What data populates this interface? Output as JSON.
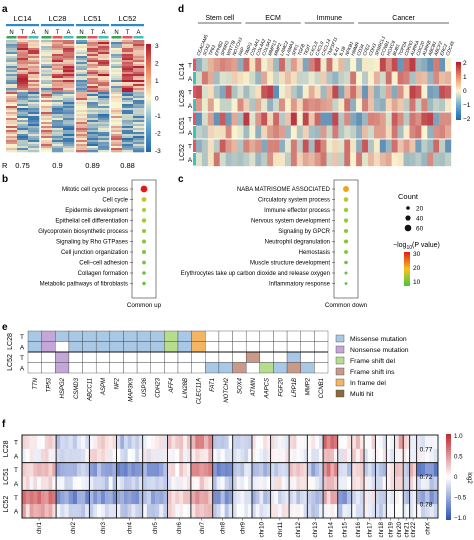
{
  "panels": {
    "a": {
      "label": "a",
      "samples": [
        "LC14",
        "LC28",
        "LC51",
        "LC52"
      ],
      "subs": [
        "N",
        "T",
        "A"
      ],
      "r_label": "R",
      "r_values": [
        "0.75",
        "0.9",
        "0.89",
        "0.88"
      ],
      "colorbar_ticks": [
        "3",
        "2",
        "1",
        "0",
        "-1",
        "-2",
        "-3"
      ]
    },
    "b": {
      "label": "b",
      "terms": [
        "Mitotic cell cycle process",
        "Cell cycle",
        "Epidermis development",
        "Epithelial cell differentiation",
        "Glycoprotein biosynthetic process",
        "Signaling by Rho GTPases",
        "Cell junction organization",
        "Cell–cell adhesion",
        "Collagen formation",
        "Metabolic pathways of fibroblasts"
      ],
      "xlabel": "Common up"
    },
    "c": {
      "label": "c",
      "terms": [
        "NABA MATRISOME ASSOCIATED",
        "Circulatory system process",
        "Immune effector process",
        "Nervous system development",
        "Signaling by GPCR",
        "Neutrophil degranulation",
        "Hemostasis",
        "Muscle structure development",
        "Erythrocytes take up carbon dioxide and release oxygen",
        "Inflammatory response"
      ],
      "xlabel": "Common down",
      "count_title": "Count",
      "count_ticks": [
        "20",
        "40",
        "60"
      ],
      "p_title_prefix": "−log",
      "p_title_sub": "10",
      "p_title_suffix": "(P value)",
      "p_ticks": [
        "30",
        "20",
        "10"
      ]
    },
    "d": {
      "label": "d",
      "groups": [
        "Stem cell",
        "ECM",
        "Immune",
        "Cancer"
      ],
      "genes": [
        "CEACAM5",
        "SOX2",
        "TP63",
        "EPHB2",
        "SPRR3",
        "WNT7B",
        "NOTCH3",
        "FAP",
        "TIMP3",
        "COL4A1",
        "COL4A2",
        "COL5A1",
        "MMP13",
        "MMP2",
        "LAMC2",
        "LAMA3",
        "SPP1",
        "TGFB",
        "TIGIT",
        "CXCL8",
        "CXCL9",
        "CXCL14",
        "TNFSF11",
        "IL41",
        "IL1B",
        "NFKB1",
        "HMMR",
        "CD34",
        "CFE2",
        "CDH3",
        "SPARCL1",
        "CCNB1",
        "HOXC6",
        "BUB1",
        "TOP2A",
        "CDKN3",
        "AURKA",
        "CDC20",
        "AURKB",
        "ABCB1",
        "ABCF2",
        "ERC2",
        "CDC45"
      ],
      "row_groups": [
        "LC14",
        "LC28",
        "LC51",
        "LC52"
      ],
      "row_subs": [
        "T",
        "A"
      ],
      "colorbar_ticks": [
        "2",
        "1",
        "0",
        "−1",
        "−2"
      ]
    },
    "e": {
      "label": "e",
      "samples": [
        "LC28",
        "LC52"
      ],
      "subs": [
        "T",
        "A"
      ],
      "genes": [
        "TTN",
        "TP53",
        "HSPG2",
        "CSMD3",
        "ABCC11",
        "ASPM",
        "NF2",
        "MAP3K9",
        "USP36",
        "CDH23",
        "AFF4",
        "LIN28B",
        "CLEC11A",
        "FAT1",
        "NOTCH2",
        "SOX4",
        "ATMIN",
        "AAPCS",
        "FGF20",
        "LRP1B",
        "MMP2",
        "CCNB1"
      ],
      "legend": [
        "Missense mutation",
        "Nonsense mutation",
        "Frame shift del",
        "Frame shift ins",
        "In frame del",
        "Multi hit"
      ],
      "legend_colors": [
        "#a8c8e6",
        "#c4a6d8",
        "#b6dc8e",
        "#c9998a",
        "#f3b562",
        "#8b6a3e"
      ]
    },
    "f": {
      "label": "f",
      "samples": [
        "LC28",
        "LC51",
        "LC52"
      ],
      "subs": [
        "T",
        "A"
      ],
      "chromosomes": [
        "chr1",
        "chr2",
        "chr3",
        "chr4",
        "chr5",
        "chr6",
        "chr7",
        "chr8",
        "chr9",
        "chr10",
        "chr11",
        "chr12",
        "chr13",
        "chr14",
        "chr15",
        "chr16",
        "chr17",
        "chr18",
        "chr19",
        "chr20",
        "chr21",
        "chr22",
        "chrX"
      ],
      "r_values": [
        "0.77",
        "0.72",
        "0.78"
      ],
      "colorbar_ticks": [
        "1.0",
        "0.5",
        "0",
        "−0.5",
        "−1.0"
      ],
      "colorbar_label": "log2"
    }
  },
  "colors": {
    "sample_bar": "#2e8bc9",
    "N": "#3aa55a",
    "T": "#e8535e",
    "A": "#3ec2b9",
    "high": "#c1272d",
    "low": "#2c6ea5",
    "mid": "#ffffff"
  }
}
